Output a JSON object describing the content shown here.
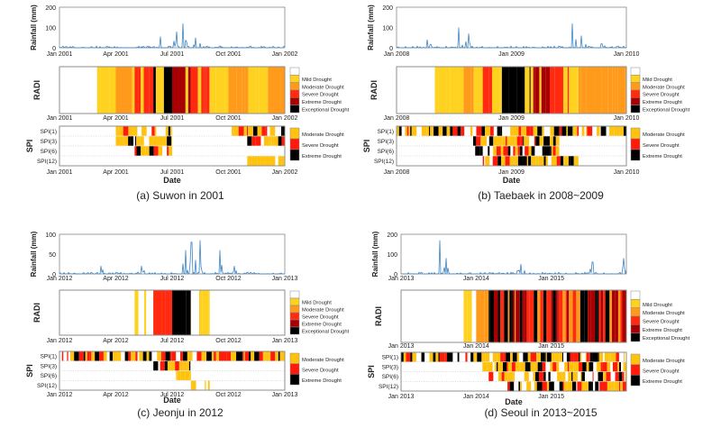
{
  "figure": {
    "panels": [
      {
        "caption": "(a) Suwon in 2001",
        "rain_ylabel": "Rainfall (mm)",
        "radi_ylabel": "RADI",
        "spi_ylabel": "SPI",
        "xlabel": "Date",
        "rain_yticks": [
          "0",
          "100",
          "200"
        ],
        "xticks": [
          "Jan 2001",
          "Apr 2001",
          "Jul 2001",
          "Oct 2001",
          "Jan 2002"
        ]
      },
      {
        "caption": "(b) Taebaek in 2008~2009",
        "rain_ylabel": "Rainfall (mm)",
        "radi_ylabel": "RADI",
        "spi_ylabel": "SPI",
        "xlabel": "Date",
        "rain_yticks": [
          "0",
          "100",
          "200"
        ],
        "xticks": [
          "Jan 2008",
          "Jan 2009",
          "Jan 2010"
        ]
      },
      {
        "caption": "(c) Jeonju in 2012",
        "rain_ylabel": "Rainfall (mm)",
        "radi_ylabel": "RADI",
        "spi_ylabel": "SPI",
        "xlabel": "Date",
        "rain_yticks": [
          "0",
          "50",
          "100"
        ],
        "xticks": [
          "Jan 2012",
          "Apr 2012",
          "Jul 2012",
          "Oct 2012",
          "Jan 2013"
        ]
      },
      {
        "caption": "(d) Seoul in 2013~2015",
        "rain_ylabel": "Rainfall (mm)",
        "radi_ylabel": "RADI",
        "spi_ylabel": "SPI",
        "xlabel": "Date",
        "rain_yticks": [
          "0",
          "100",
          "200"
        ],
        "xticks": [
          "Jan 2013",
          "Jan 2014",
          "Jan 2015"
        ]
      }
    ]
  },
  "legends": {
    "radi": [
      {
        "label": "Mild Drought",
        "color": "#ffd21f"
      },
      {
        "label": "Moderate Drought",
        "color": "#ff9a1a"
      },
      {
        "label": "Severe Drought",
        "color": "#ff2a10"
      },
      {
        "label": "Extreme Drought",
        "color": "#a80000"
      },
      {
        "label": "Exceptional Drought",
        "color": "#000000"
      }
    ],
    "spi": [
      {
        "label": "Moderate Drought",
        "color": "#ffc20e"
      },
      {
        "label": "Severe Drought",
        "color": "#ff1a0a"
      },
      {
        "label": "Extreme Drought",
        "color": "#000000"
      }
    ]
  },
  "colors": {
    "rainfall_line": "#3e86c4",
    "radi_mild": "#ffd21f",
    "radi_moderate": "#ff9a1a",
    "radi_severe": "#ff2a10",
    "radi_extreme": "#a80000",
    "radi_exceptional": "#000000",
    "spi_moderate": "#ffc20e",
    "spi_severe": "#ff1a0a",
    "spi_extreme": "#000000"
  },
  "chart_data": [
    {
      "type": "line",
      "title": "(a) Suwon in 2001",
      "xlabel": "Date",
      "x_range": [
        "Jan 2001",
        "Jan 2002"
      ],
      "rainfall": {
        "ylabel": "Rainfall (mm)",
        "ylim": [
          0,
          200
        ],
        "peaks": [
          {
            "x": "Jan 2001",
            "y": 8
          },
          {
            "x": "Mar 2001",
            "y": 5
          },
          {
            "x": "Jun 2001",
            "y": 55
          },
          {
            "x": "Jul 2001",
            "y": 80
          },
          {
            "x": "Jul 2001",
            "y": 120
          },
          {
            "x": "Aug 2001",
            "y": 50
          },
          {
            "x": "Sep 2001",
            "y": 10
          },
          {
            "x": "Nov 2001",
            "y": 8
          }
        ]
      },
      "radi": {
        "ylabel": "RADI",
        "segments": [
          {
            "start": "Mar 2001",
            "end": "Apr 2001",
            "class": "mild"
          },
          {
            "start": "Apr 2001",
            "end": "May 2001",
            "class": "moderate"
          },
          {
            "start": "May 2001",
            "end": "Jun 2001",
            "class": "severe"
          },
          {
            "start": "Jun 2001",
            "end": "Jul 2001",
            "class": "exceptional"
          },
          {
            "start": "Jul 2001",
            "end": "Aug 2001",
            "class": "extreme"
          },
          {
            "start": "Aug 2001",
            "end": "Sep 2001",
            "class": "severe"
          },
          {
            "start": "Sep 2001",
            "end": "Oct 2001",
            "class": "mild"
          },
          {
            "start": "Oct 2001",
            "end": "Jan 2002",
            "class": "moderate"
          }
        ]
      },
      "spi": {
        "ylabel": "SPI",
        "rows": [
          "SPI(1)",
          "SPI(3)",
          "SPI(6)",
          "SPI(12)"
        ],
        "segments": [
          {
            "row": "SPI(1)",
            "start": "Apr 2001",
            "end": "Jul 2001",
            "class": "mixed"
          },
          {
            "row": "SPI(3)",
            "start": "Apr 2001",
            "end": "Jul 2001",
            "class": "mixed"
          },
          {
            "row": "SPI(6)",
            "start": "May 2001",
            "end": "Jul 2001",
            "class": "mixed"
          },
          {
            "row": "SPI(1)",
            "start": "Oct 2001",
            "end": "Jan 2002",
            "class": "mixed"
          },
          {
            "row": "SPI(3)",
            "start": "Nov 2001",
            "end": "Jan 2002",
            "class": "mixed"
          },
          {
            "row": "SPI(12)",
            "start": "Nov 2001",
            "end": "Jan 2002",
            "class": "moderate"
          }
        ]
      }
    },
    {
      "type": "line",
      "title": "(b) Taebaek in 2008~2009",
      "xlabel": "Date",
      "x_range": [
        "Jan 2008",
        "Jan 2010"
      ],
      "rainfall": {
        "ylabel": "Rainfall (mm)",
        "ylim": [
          0,
          200
        ],
        "peaks": [
          {
            "x": "Apr 2008",
            "y": 40
          },
          {
            "x": "Jul 2008",
            "y": 100
          },
          {
            "x": "Aug 2008",
            "y": 70
          },
          {
            "x": "Jul 2009",
            "y": 120
          },
          {
            "x": "Aug 2009",
            "y": 60
          },
          {
            "x": "Oct 2009",
            "y": 20
          }
        ]
      },
      "radi": {
        "ylabel": "RADI",
        "segments": [
          {
            "start": "May 2008",
            "end": "Aug 2008",
            "class": "mild"
          },
          {
            "start": "Aug 2008",
            "end": "Oct 2008",
            "class": "moderate"
          },
          {
            "start": "Oct 2008",
            "end": "Dec 2008",
            "class": "severe"
          },
          {
            "start": "Dec 2008",
            "end": "Mar 2009",
            "class": "exceptional"
          },
          {
            "start": "Mar 2009",
            "end": "May 2009",
            "class": "extreme"
          },
          {
            "start": "May 2009",
            "end": "Jul 2009",
            "class": "severe"
          },
          {
            "start": "Jul 2009",
            "end": "Aug 2009",
            "class": "mild"
          },
          {
            "start": "Aug 2009",
            "end": "Jan 2010",
            "class": "moderate"
          }
        ]
      },
      "spi": {
        "ylabel": "SPI",
        "rows": [
          "SPI(1)",
          "SPI(3)",
          "SPI(6)",
          "SPI(12)"
        ],
        "segments": [
          {
            "row": "SPI(1)",
            "start": "Jan 2008",
            "end": "Jan 2010",
            "class": "mixed"
          },
          {
            "row": "SPI(3)",
            "start": "Sep 2008",
            "end": "Jun 2009",
            "class": "mixed"
          },
          {
            "row": "SPI(6)",
            "start": "Sep 2008",
            "end": "Jun 2009",
            "class": "mixed"
          },
          {
            "row": "SPI(12)",
            "start": "Oct 2008",
            "end": "Aug 2009",
            "class": "mixed"
          }
        ]
      }
    },
    {
      "type": "line",
      "title": "(c) Jeonju in 2012",
      "xlabel": "Date",
      "x_range": [
        "Jan 2012",
        "Jan 2013"
      ],
      "rainfall": {
        "ylabel": "Rainfall (mm)",
        "ylim": [
          0,
          100
        ],
        "peaks": [
          {
            "x": "Mar 2012",
            "y": 20
          },
          {
            "x": "May 2012",
            "y": 20
          },
          {
            "x": "Jul 2012",
            "y": 60
          },
          {
            "x": "Aug 2012",
            "y": 85
          },
          {
            "x": "Aug 2012",
            "y": 80
          },
          {
            "x": "Sep 2012",
            "y": 60
          },
          {
            "x": "Oct 2012",
            "y": 20
          }
        ]
      },
      "radi": {
        "ylabel": "RADI",
        "segments": [
          {
            "start": "May 2012",
            "end": "Jun 2012",
            "class": "mild"
          },
          {
            "start": "Jun 2012",
            "end": "Jun 2012",
            "class": "moderate"
          },
          {
            "start": "Jun 2012",
            "end": "Jul 2012",
            "class": "severe"
          },
          {
            "start": "Jul 2012",
            "end": "Aug 2012",
            "class": "exceptional"
          },
          {
            "start": "Aug 2012",
            "end": "Aug 2012",
            "class": "severe"
          },
          {
            "start": "Aug 2012",
            "end": "Sep 2012",
            "class": "mild"
          }
        ]
      },
      "spi": {
        "ylabel": "SPI",
        "rows": [
          "SPI(1)",
          "SPI(3)",
          "SPI(6)",
          "SPI(12)"
        ],
        "segments": [
          {
            "row": "SPI(1)",
            "start": "Jan 2012",
            "end": "Jan 2013",
            "class": "mixed"
          },
          {
            "row": "SPI(3)",
            "start": "Jun 2012",
            "end": "Aug 2012",
            "class": "mixed"
          },
          {
            "row": "SPI(6)",
            "start": "Jul 2012",
            "end": "Aug 2012",
            "class": "mixed"
          },
          {
            "row": "SPI(12)",
            "start": "Aug 2012",
            "end": "Sep 2012",
            "class": "moderate"
          }
        ]
      }
    },
    {
      "type": "line",
      "title": "(d) Seoul in 2013~2015",
      "xlabel": "Date",
      "x_range": [
        "Jan 2013",
        "Jan 2016"
      ],
      "rainfall": {
        "ylabel": "Rainfall (mm)",
        "ylim": [
          0,
          200
        ],
        "peaks": [
          {
            "x": "Jul 2013",
            "y": 170
          },
          {
            "x": "Aug 2013",
            "y": 80
          },
          {
            "x": "Aug 2014",
            "y": 50
          },
          {
            "x": "Jul 2015",
            "y": 60
          },
          {
            "x": "Dec 2015",
            "y": 80
          }
        ]
      },
      "radi": {
        "ylabel": "RADI",
        "segments": [
          {
            "start": "Nov 2013",
            "end": "Jan 2014",
            "class": "mild"
          },
          {
            "start": "Jan 2014",
            "end": "Mar 2014",
            "class": "moderate"
          },
          {
            "start": "Mar 2014",
            "end": "Jan 2016",
            "class": "mixed_severe_extreme"
          }
        ]
      },
      "spi": {
        "ylabel": "SPI",
        "rows": [
          "SPI(1)",
          "SPI(3)",
          "SPI(6)",
          "SPI(12)"
        ],
        "segments": [
          {
            "row": "SPI(1)",
            "start": "Jan 2013",
            "end": "Jan 2016",
            "class": "mixed"
          },
          {
            "row": "SPI(3)",
            "start": "Feb 2014",
            "end": "Jan 2016",
            "class": "mixed"
          },
          {
            "row": "SPI(6)",
            "start": "Mar 2014",
            "end": "Jan 2016",
            "class": "mixed"
          },
          {
            "row": "SPI(12)",
            "start": "Jun 2014",
            "end": "Jan 2016",
            "class": "mixed"
          }
        ]
      }
    }
  ]
}
